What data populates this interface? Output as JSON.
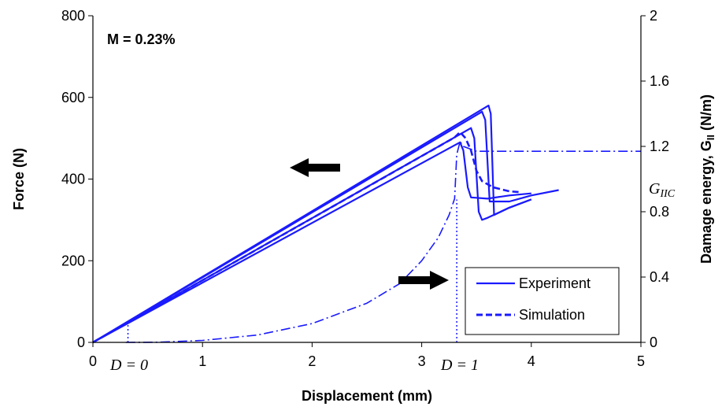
{
  "chart_data": {
    "type": "line",
    "annotation_title": "M = 0.23%",
    "xlabel": "Displacement (mm)",
    "ylabel": "Force (N)",
    "y2label_main": "Damage energy, G",
    "y2label_sub": "II",
    "y2label_unit": " (N/m)",
    "xlim": [
      0,
      5
    ],
    "ylim": [
      0,
      800
    ],
    "y2lim": [
      0,
      2
    ],
    "xticks": [
      "0",
      "1",
      "2",
      "3",
      "4",
      "5"
    ],
    "yticks": [
      "0",
      "200",
      "400",
      "600",
      "800"
    ],
    "y2ticks": [
      "0",
      "0.4",
      "0.8",
      "1.2",
      "1.6",
      "2"
    ],
    "grid": false,
    "legend_position": "bottom-right",
    "legend": [
      {
        "label": "Experiment",
        "style": "solid"
      },
      {
        "label": "Simulation",
        "style": "dashed"
      }
    ],
    "labels": {
      "d0": "D = 0",
      "d1": "D = 1",
      "giic": "G",
      "giic_sub": "IIC"
    },
    "color": "#1a1aff",
    "series": [
      {
        "name": "Experiment",
        "axis": "left",
        "style": "solid",
        "points": [
          [
            0,
            0
          ],
          [
            3.35,
            490
          ],
          [
            3.38,
            470
          ],
          [
            3.42,
            380
          ],
          [
            3.45,
            355
          ],
          [
            3.6,
            352
          ],
          [
            3.8,
            360
          ],
          [
            4.0,
            365
          ]
        ]
      },
      {
        "name": "Experiment",
        "axis": "left",
        "style": "solid",
        "points": [
          [
            0,
            0
          ],
          [
            3.45,
            525
          ],
          [
            3.48,
            500
          ],
          [
            3.52,
            320
          ],
          [
            3.55,
            300
          ],
          [
            3.6,
            305
          ],
          [
            3.8,
            330
          ],
          [
            4.0,
            350
          ]
        ]
      },
      {
        "name": "Experiment",
        "axis": "left",
        "style": "solid",
        "points": [
          [
            0,
            0
          ],
          [
            3.55,
            565
          ],
          [
            3.58,
            545
          ],
          [
            3.62,
            345
          ],
          [
            3.8,
            345
          ],
          [
            4.0,
            360
          ],
          [
            4.25,
            373
          ]
        ]
      },
      {
        "name": "Experiment",
        "axis": "left",
        "style": "solid",
        "points": [
          [
            0,
            0
          ],
          [
            3.61,
            580
          ],
          [
            3.63,
            560
          ],
          [
            3.66,
            312
          ],
          [
            3.8,
            330
          ],
          [
            4.0,
            350
          ]
        ]
      },
      {
        "name": "Simulation",
        "axis": "left",
        "style": "dashed",
        "points": [
          [
            0,
            0
          ],
          [
            3.3,
            502
          ],
          [
            3.35,
            515
          ],
          [
            3.4,
            500
          ],
          [
            3.45,
            470
          ],
          [
            3.5,
            420
          ],
          [
            3.55,
            395
          ],
          [
            3.65,
            380
          ],
          [
            3.8,
            370
          ],
          [
            3.9,
            368
          ]
        ]
      },
      {
        "name": "Damage energy",
        "axis": "right",
        "style": "dashdot",
        "points": [
          [
            0.3,
            0
          ],
          [
            0.6,
            0.001
          ],
          [
            1.0,
            0.012
          ],
          [
            1.5,
            0.045
          ],
          [
            2.0,
            0.115
          ],
          [
            2.5,
            0.24
          ],
          [
            2.8,
            0.36
          ],
          [
            3.0,
            0.5
          ],
          [
            3.15,
            0.64
          ],
          [
            3.25,
            0.78
          ],
          [
            3.3,
            0.88
          ],
          [
            3.32,
            1.15
          ],
          [
            3.35,
            1.23
          ],
          [
            3.38,
            1.2
          ],
          [
            3.42,
            1.19
          ],
          [
            3.5,
            1.17
          ],
          [
            5,
            1.17
          ]
        ]
      }
    ]
  }
}
